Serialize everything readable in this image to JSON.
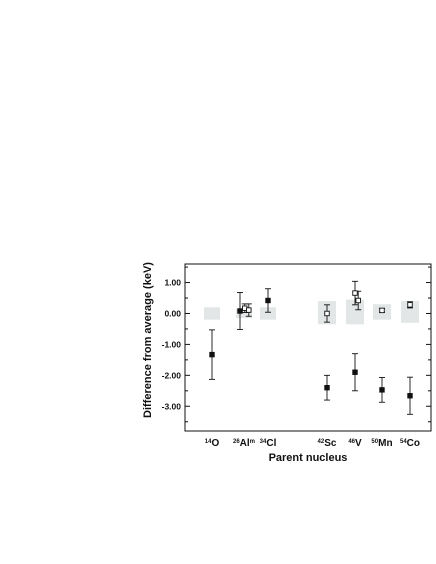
{
  "chart_data": {
    "type": "scatter",
    "title": "",
    "xlabel": "Parent nucleus",
    "ylabel": "Difference from average (keV)",
    "ylim": [
      -3.8,
      1.6
    ],
    "y_ticks": [
      "1.00",
      "0.00",
      "-1.00",
      "-2.00",
      "-3.00"
    ],
    "y_tick_values": [
      1,
      0,
      -1,
      -2,
      -3
    ],
    "grid": false,
    "legend": "none",
    "categories": [
      {
        "key": "O14",
        "mass": "14",
        "symbol": "O",
        "suffix": ""
      },
      {
        "key": "Al26m",
        "mass": "26",
        "symbol": "Al",
        "suffix": "m"
      },
      {
        "key": "Cl34",
        "mass": "34",
        "symbol": "Cl",
        "suffix": ""
      },
      {
        "key": "Sc42",
        "mass": "42",
        "symbol": "Sc",
        "suffix": ""
      },
      {
        "key": "V46",
        "mass": "46",
        "symbol": "V",
        "suffix": ""
      },
      {
        "key": "Mn50",
        "mass": "50",
        "symbol": "Mn",
        "suffix": ""
      },
      {
        "key": "Co54",
        "mass": "54",
        "symbol": "Co",
        "suffix": ""
      }
    ],
    "bands": [
      {
        "category": "O14",
        "low": -0.2,
        "high": 0.2
      },
      {
        "category": "Al26m",
        "low": -0.15,
        "high": 0.15
      },
      {
        "category": "Cl34",
        "low": -0.2,
        "high": 0.2
      },
      {
        "category": "Sc42",
        "low": -0.35,
        "high": 0.4
      },
      {
        "category": "V46",
        "low": -0.35,
        "high": 0.45
      },
      {
        "category": "Mn50",
        "low": -0.2,
        "high": 0.3
      },
      {
        "category": "Co54",
        "low": -0.3,
        "high": 0.4
      }
    ],
    "series": [
      {
        "marker": "filled-square",
        "points": [
          {
            "category": "O14",
            "offset": 0,
            "y": -1.33,
            "err": 0.8
          },
          {
            "category": "Al26m",
            "offset": -0.5,
            "y": 0.08,
            "err": 0.6
          },
          {
            "category": "Cl34",
            "offset": 0,
            "y": 0.42,
            "err": 0.38
          },
          {
            "category": "Sc42",
            "offset": 0,
            "y": -2.4,
            "err": 0.4
          },
          {
            "category": "V46",
            "offset": 0,
            "y": -1.9,
            "err": 0.6
          },
          {
            "category": "Mn50",
            "offset": 0,
            "y": -2.47,
            "err": 0.4
          },
          {
            "category": "Co54",
            "offset": 0,
            "y": -2.66,
            "err": 0.6
          }
        ]
      },
      {
        "marker": "open-square",
        "points": [
          {
            "category": "Al26m",
            "offset": 0.1,
            "y": 0.17,
            "err": 0.14
          },
          {
            "category": "Al26m",
            "offset": 0.6,
            "y": 0.11,
            "err": 0.2
          },
          {
            "category": "Sc42",
            "offset": 0,
            "y": 0.0,
            "err": 0.28
          },
          {
            "category": "V46",
            "offset": 0,
            "y": 0.66,
            "err": 0.38
          },
          {
            "category": "V46",
            "offset": 0.4,
            "y": 0.42,
            "err": 0.3
          },
          {
            "category": "Mn50",
            "offset": 0,
            "y": 0.1,
            "err": 0.06
          },
          {
            "category": "Co54",
            "offset": 0,
            "y": 0.28,
            "err": 0.1
          }
        ]
      }
    ]
  }
}
